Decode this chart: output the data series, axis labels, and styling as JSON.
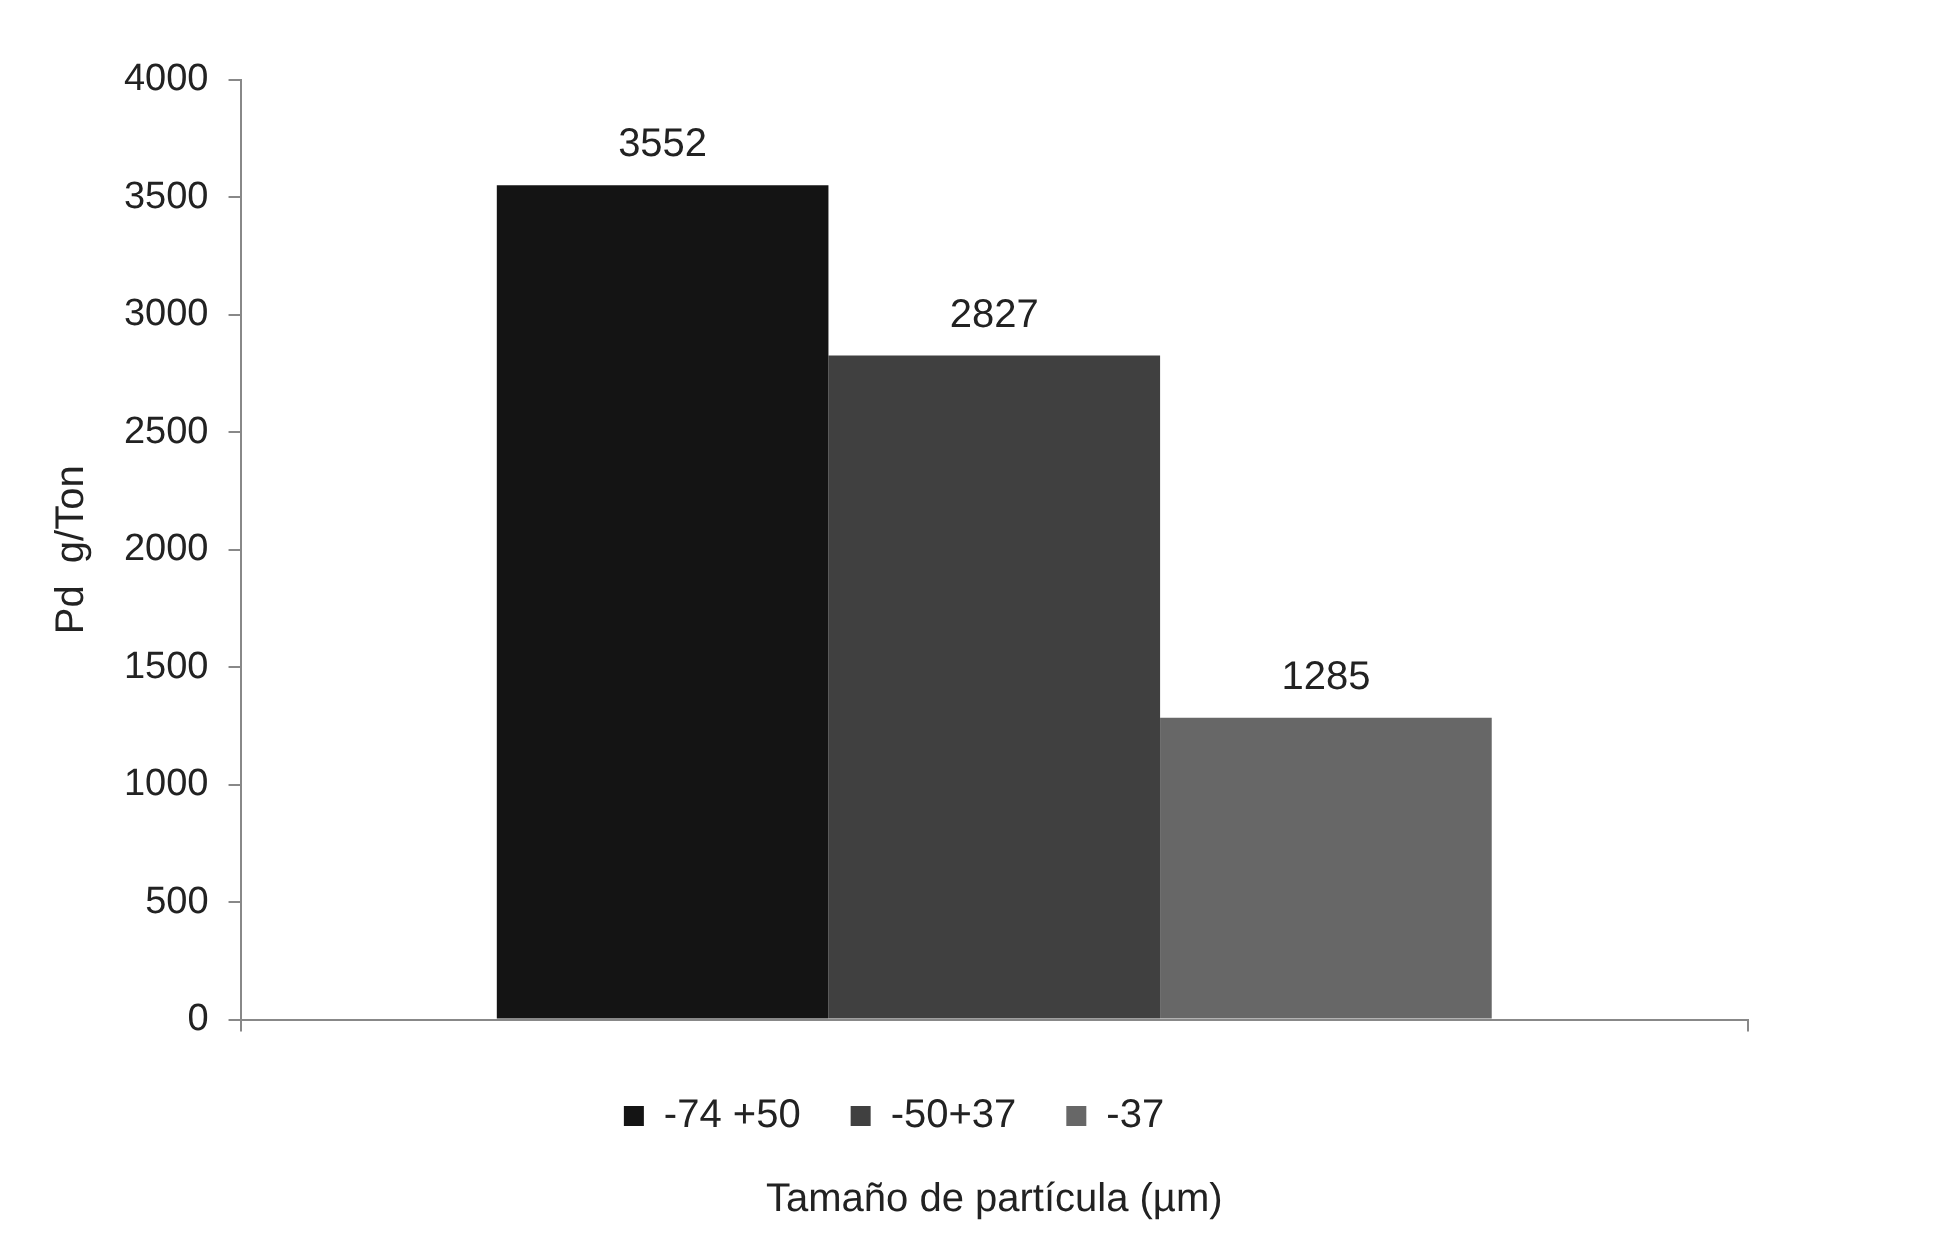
{
  "chart_data": {
    "type": "bar",
    "xlabel": "Tamaño de partícula (µm)",
    "ylabel": "Pd  g/Ton",
    "categories": [
      null
    ],
    "series": [
      {
        "name": "-74 +50",
        "color": "#141414",
        "values": [
          3552
        ]
      },
      {
        "name": "-50+37",
        "color": "#404040",
        "values": [
          2827
        ]
      },
      {
        "name": "-37",
        "color": "#676767",
        "values": [
          1285
        ]
      }
    ],
    "ylim": [
      0,
      4000
    ],
    "yticks": [
      0,
      500,
      1000,
      1500,
      2000,
      2500,
      3000,
      3500,
      4000
    ],
    "grid": false,
    "legend": "bottom",
    "data_labels": true
  }
}
